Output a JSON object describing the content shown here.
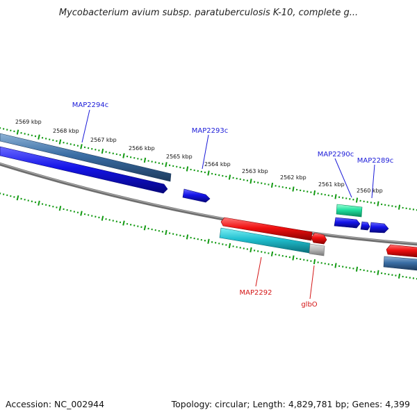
{
  "title": "Mycobacterium avium subsp. paratuberculosis K-10, complete g...",
  "footer": {
    "accession": "Accession: NC_002944",
    "summary": "Topology: circular; Length: 4,829,781 bp; Genes: 4,399"
  },
  "ruler_labels": [
    "2569 kbp",
    "2568 kbp",
    "2567 kbp",
    "2566 kbp",
    "2565 kbp",
    "2564 kbp",
    "2563 kbp",
    "2562 kbp",
    "2561 kbp",
    "2560 kbp"
  ],
  "gene_labels": {
    "map2294c": "MAP2294c",
    "map2293c": "MAP2293c",
    "map2290c": "MAP2290c",
    "map2289c": "MAP2289c",
    "map2292": "MAP2292",
    "glbo": "glbO"
  },
  "colors": {
    "forward_cds": "#ee1111",
    "reverse_cds": "#1111dd",
    "forward_gene": "#22bbcc",
    "reverse_gene": "#3a6ea5",
    "rna": "#22dd99",
    "tick": "#119911",
    "backbone": "#777777"
  }
}
